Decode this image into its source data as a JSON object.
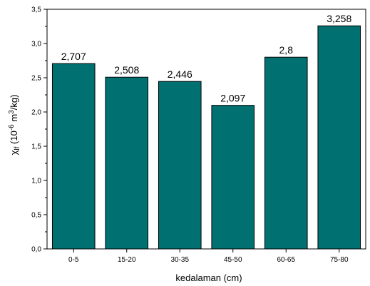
{
  "chart_data": {
    "type": "bar",
    "categories": [
      "0-5",
      "15-20",
      "30-35",
      "45-50",
      "60-65",
      "75-80"
    ],
    "values": [
      2.707,
      2.508,
      2.446,
      2.097,
      2.8,
      3.258
    ],
    "data_labels": [
      "2,707",
      "2,508",
      "2,446",
      "2,097",
      "2,8",
      "3,258"
    ],
    "xlabel": "kedalaman (cm)",
    "ylabel": {
      "base": "χ",
      "sub": "lf",
      "unit_open": " (10",
      "exp1": "-6",
      "unit_mid": " m",
      "exp2": "3",
      "unit_close": "/kg)"
    },
    "ylim": [
      0,
      3.5
    ],
    "yticks": [
      0,
      0.5,
      1.0,
      1.5,
      2.0,
      2.5,
      3.0,
      3.5
    ],
    "ytick_labels": [
      "0,0",
      "0,5",
      "1,0",
      "1,5",
      "2,0",
      "2,5",
      "3,0",
      "3,5"
    ],
    "grid": false,
    "bar_color": "#007070"
  }
}
